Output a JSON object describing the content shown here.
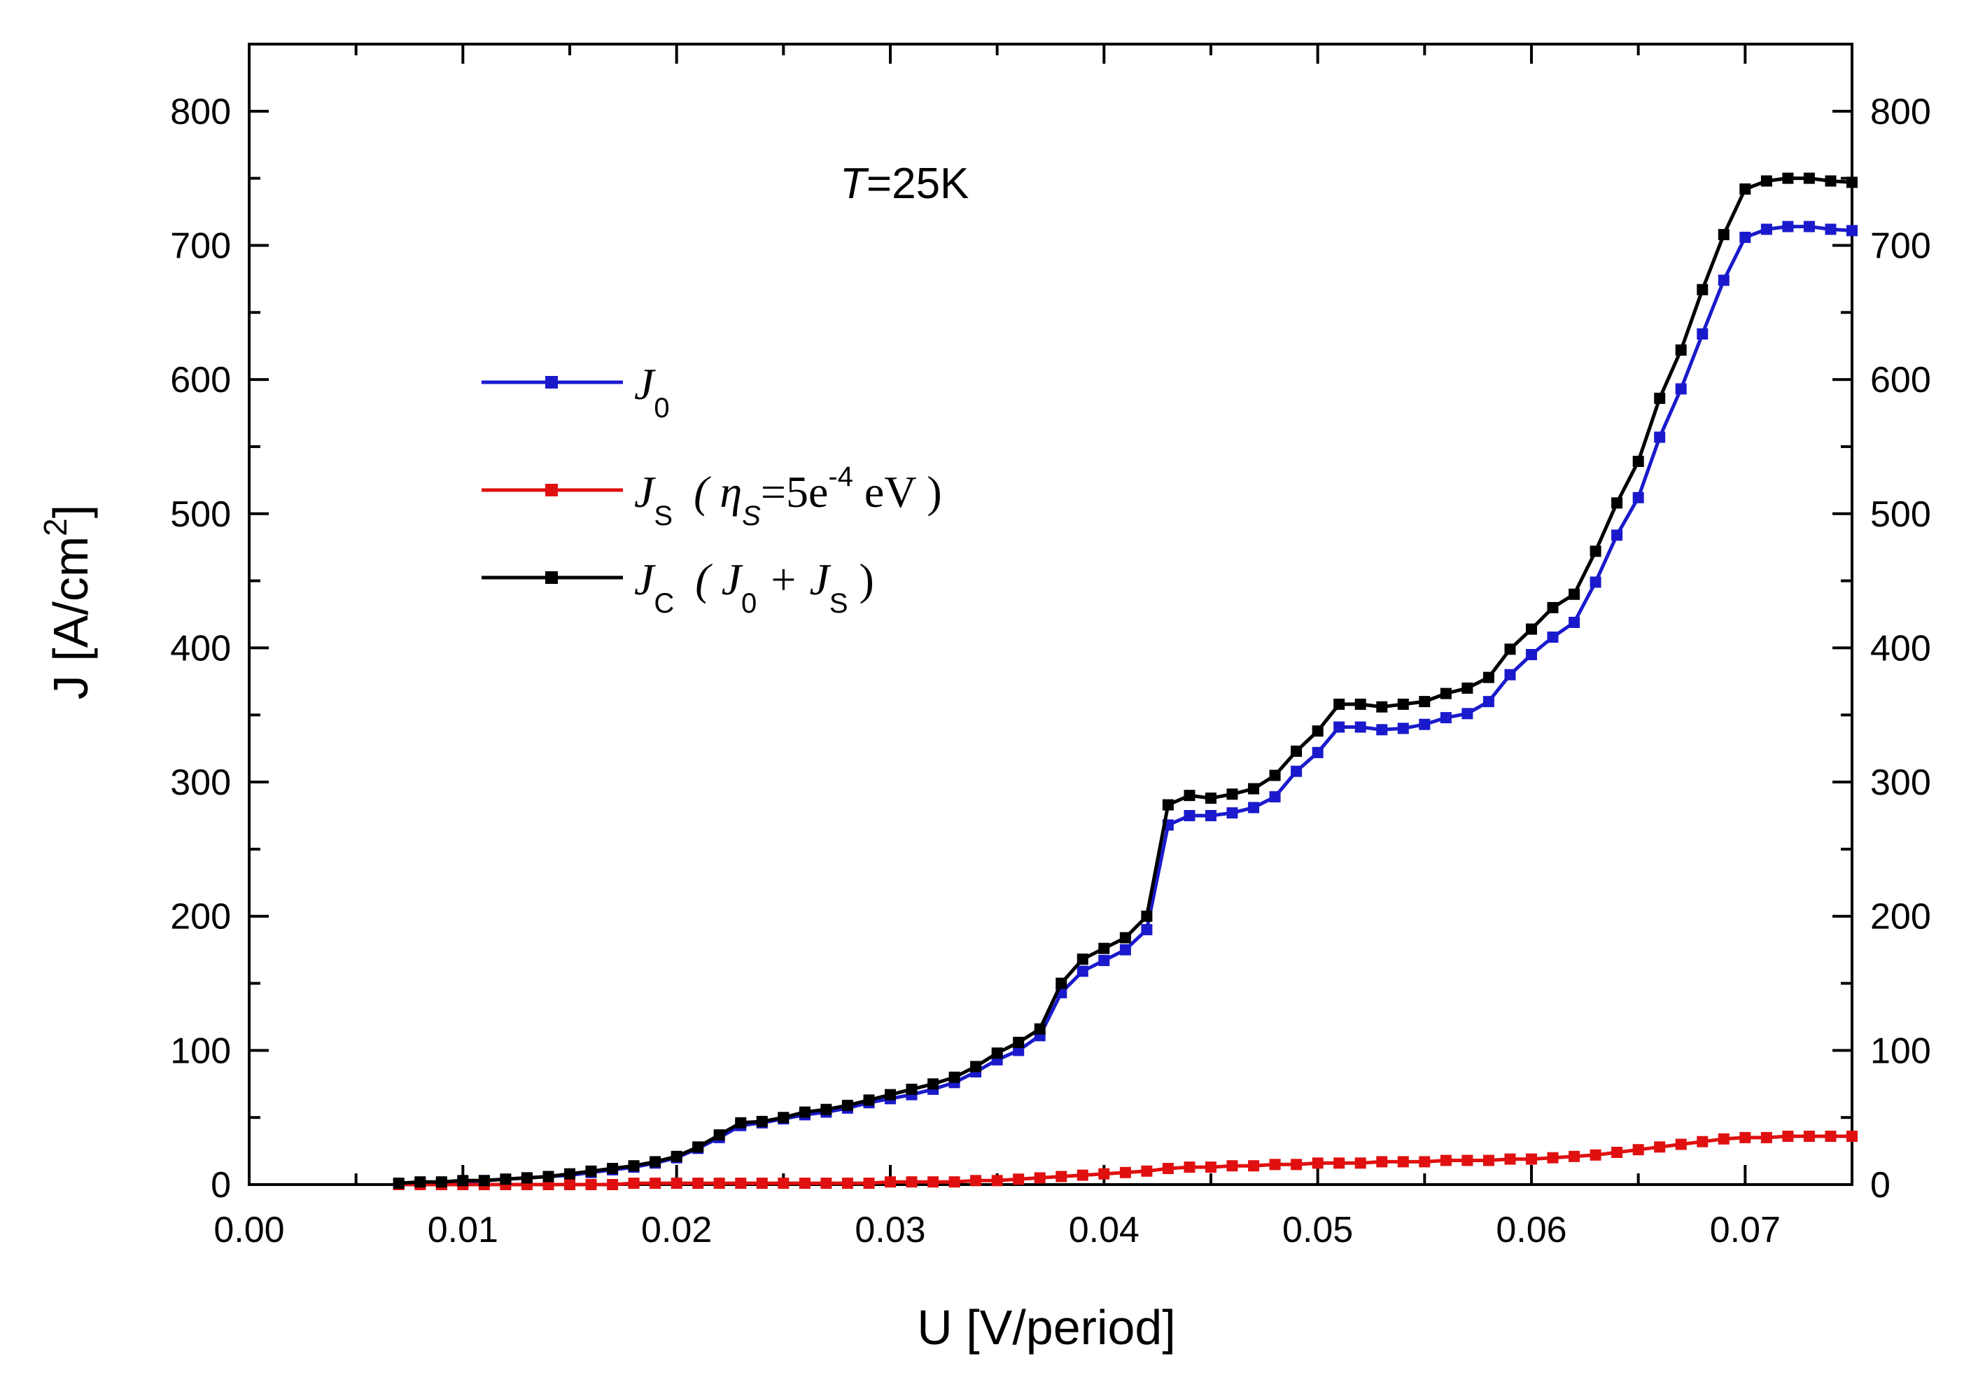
{
  "chart_data": {
    "type": "line",
    "xlabel": "U [V/period]",
    "ylabel_main": "J [A/cm",
    "ylabel_sup": "2",
    "ylabel_close": "]",
    "xlim": [
      0.0,
      0.075
    ],
    "ylim": [
      0,
      850
    ],
    "x_ticks": [
      0.0,
      0.01,
      0.02,
      0.03,
      0.04,
      0.05,
      0.06,
      0.07
    ],
    "x_tick_labels": [
      "0.00",
      "0.01",
      "0.02",
      "0.03",
      "0.04",
      "0.05",
      "0.06",
      "0.07"
    ],
    "y_ticks": [
      0,
      100,
      200,
      300,
      400,
      500,
      600,
      700,
      800
    ],
    "y_tick_labels": [
      "0",
      "100",
      "200",
      "300",
      "400",
      "500",
      "600",
      "700",
      "800"
    ],
    "annotation": {
      "italic": "T",
      "rest": "=25K"
    },
    "legend": [
      {
        "symbol": "J",
        "sub": "0",
        "extra": ""
      },
      {
        "symbol": "J",
        "sub": "S",
        "extra": "( η",
        "extra_sub": "S",
        "extra_mid": "=5e",
        "extra_sup": "-4",
        "extra_end": " eV )"
      },
      {
        "symbol": "J",
        "sub": "C",
        "extra": "( J",
        "extra_sub": "0",
        "extra_mid": " + J",
        "extra_sub2": "S",
        "extra_end": " )"
      }
    ],
    "series": [
      {
        "name": "J0",
        "color": "#1a1acc",
        "x": [
          0.007,
          0.008,
          0.009,
          0.01,
          0.011,
          0.012,
          0.013,
          0.014,
          0.015,
          0.016,
          0.017,
          0.018,
          0.019,
          0.02,
          0.021,
          0.022,
          0.023,
          0.024,
          0.025,
          0.026,
          0.027,
          0.028,
          0.029,
          0.03,
          0.031,
          0.032,
          0.033,
          0.034,
          0.035,
          0.036,
          0.037,
          0.038,
          0.039,
          0.04,
          0.041,
          0.042,
          0.043,
          0.044,
          0.045,
          0.046,
          0.047,
          0.048,
          0.049,
          0.05,
          0.051,
          0.052,
          0.053,
          0.054,
          0.055,
          0.056,
          0.057,
          0.058,
          0.059,
          0.06,
          0.061,
          0.062,
          0.063,
          0.064,
          0.065,
          0.066,
          0.067,
          0.068,
          0.069,
          0.07,
          0.071,
          0.072,
          0.073,
          0.074,
          0.075
        ],
        "y": [
          0,
          1,
          1,
          2,
          3,
          4,
          5,
          6,
          7,
          9,
          11,
          13,
          16,
          20,
          27,
          35,
          44,
          46,
          49,
          52,
          54,
          57,
          61,
          64,
          67,
          71,
          76,
          84,
          93,
          100,
          111,
          143,
          159,
          167,
          175,
          190,
          268,
          275,
          275,
          277,
          281,
          289,
          308,
          322,
          341,
          341,
          339,
          340,
          343,
          348,
          351,
          360,
          380,
          395,
          408,
          419,
          449,
          484,
          512,
          557,
          593,
          634,
          674,
          706,
          712,
          714,
          714,
          712,
          711
        ]
      },
      {
        "name": "JS (ηS=5e-4 eV)",
        "color": "#e01010",
        "x": [
          0.007,
          0.008,
          0.009,
          0.01,
          0.011,
          0.012,
          0.013,
          0.014,
          0.015,
          0.016,
          0.017,
          0.018,
          0.019,
          0.02,
          0.021,
          0.022,
          0.023,
          0.024,
          0.025,
          0.026,
          0.027,
          0.028,
          0.029,
          0.03,
          0.031,
          0.032,
          0.033,
          0.034,
          0.035,
          0.036,
          0.037,
          0.038,
          0.039,
          0.04,
          0.041,
          0.042,
          0.043,
          0.044,
          0.045,
          0.046,
          0.047,
          0.048,
          0.049,
          0.05,
          0.051,
          0.052,
          0.053,
          0.054,
          0.055,
          0.056,
          0.057,
          0.058,
          0.059,
          0.06,
          0.061,
          0.062,
          0.063,
          0.064,
          0.065,
          0.066,
          0.067,
          0.068,
          0.069,
          0.07,
          0.071,
          0.072,
          0.073,
          0.074,
          0.075
        ],
        "y": [
          0,
          0,
          0,
          0,
          0,
          0,
          0,
          0,
          0,
          0,
          0,
          1,
          1,
          1,
          1,
          1,
          1,
          1,
          1,
          1,
          1,
          1,
          1,
          2,
          2,
          2,
          2,
          3,
          3,
          4,
          5,
          6,
          7,
          8,
          9,
          10,
          12,
          13,
          13,
          14,
          14,
          15,
          15,
          16,
          16,
          16,
          17,
          17,
          17,
          18,
          18,
          18,
          19,
          19,
          20,
          21,
          22,
          24,
          26,
          28,
          30,
          32,
          34,
          35,
          35,
          36,
          36,
          36,
          36
        ]
      },
      {
        "name": "JC (J0 + JS)",
        "color": "#000000",
        "x": [
          0.007,
          0.008,
          0.009,
          0.01,
          0.011,
          0.012,
          0.013,
          0.014,
          0.015,
          0.016,
          0.017,
          0.018,
          0.019,
          0.02,
          0.021,
          0.022,
          0.023,
          0.024,
          0.025,
          0.026,
          0.027,
          0.028,
          0.029,
          0.03,
          0.031,
          0.032,
          0.033,
          0.034,
          0.035,
          0.036,
          0.037,
          0.038,
          0.039,
          0.04,
          0.041,
          0.042,
          0.043,
          0.044,
          0.045,
          0.046,
          0.047,
          0.048,
          0.049,
          0.05,
          0.051,
          0.052,
          0.053,
          0.054,
          0.055,
          0.056,
          0.057,
          0.058,
          0.059,
          0.06,
          0.061,
          0.062,
          0.063,
          0.064,
          0.065,
          0.066,
          0.067,
          0.068,
          0.069,
          0.07,
          0.071,
          0.072,
          0.073,
          0.074,
          0.075
        ],
        "y": [
          1,
          2,
          2,
          3,
          3,
          4,
          5,
          6,
          8,
          10,
          12,
          14,
          17,
          21,
          28,
          37,
          46,
          47,
          50,
          54,
          56,
          59,
          63,
          67,
          71,
          75,
          80,
          88,
          98,
          106,
          116,
          150,
          168,
          176,
          184,
          200,
          283,
          290,
          288,
          291,
          295,
          305,
          323,
          338,
          358,
          358,
          356,
          358,
          360,
          366,
          370,
          378,
          399,
          414,
          430,
          440,
          472,
          508,
          539,
          586,
          622,
          667,
          708,
          742,
          748,
          750,
          750,
          748,
          747
        ]
      }
    ]
  }
}
